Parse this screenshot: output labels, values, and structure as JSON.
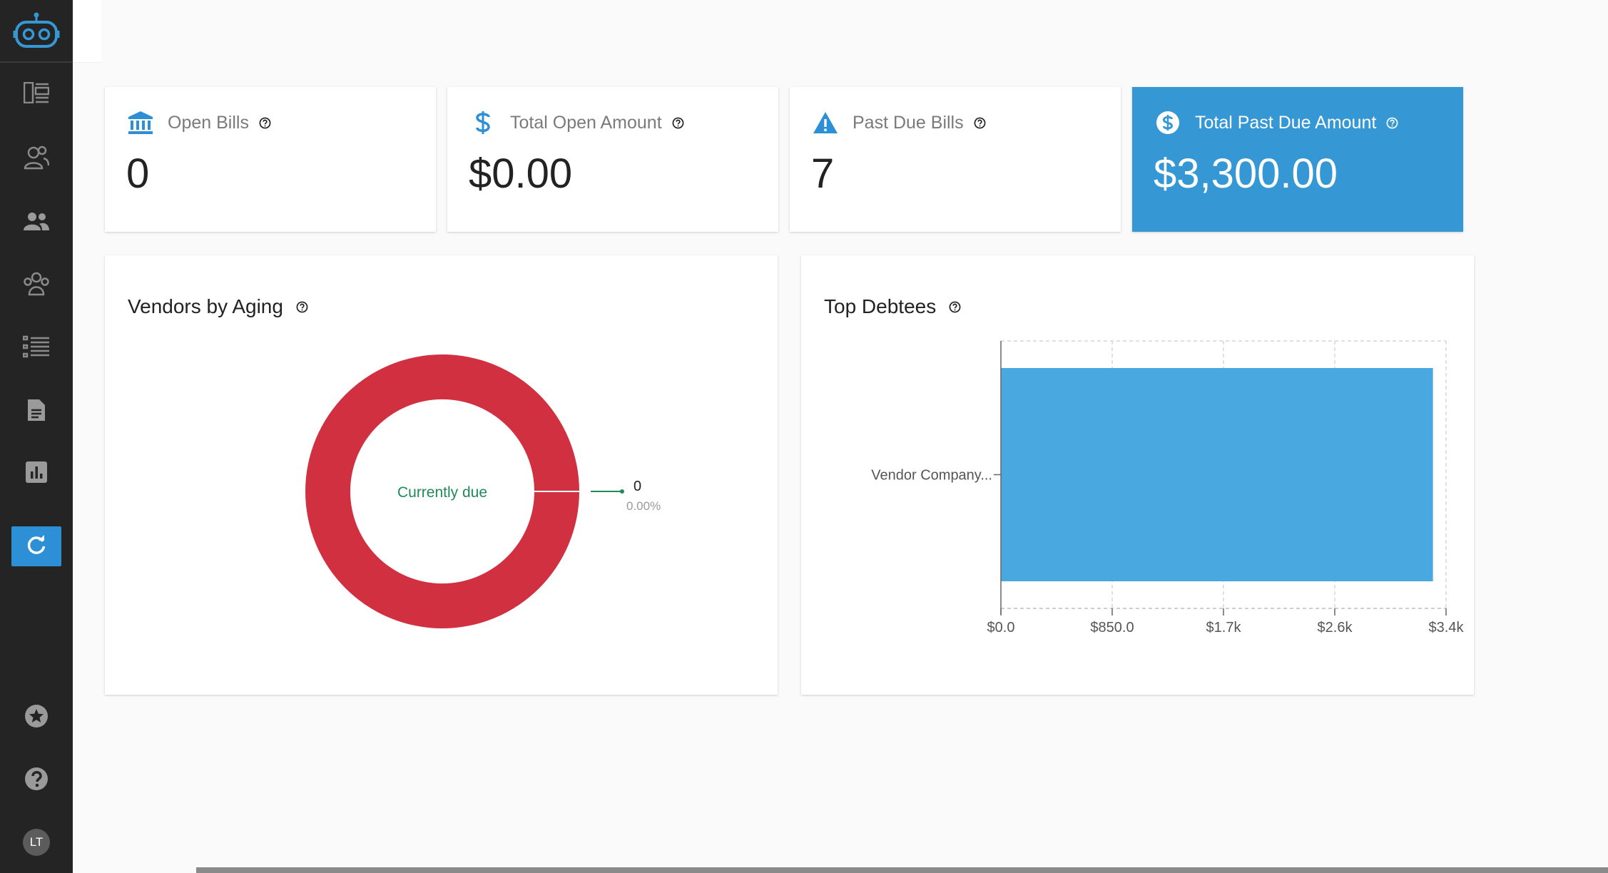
{
  "sidebar": {
    "icons": [
      "robot-logo-icon",
      "dashboard-icon",
      "contacts-icon",
      "people-icon",
      "groups-icon",
      "list-icon",
      "document-icon",
      "bar-chart-icon",
      "refresh-icon",
      "star-icon",
      "help-icon"
    ],
    "avatar_initials": "LT"
  },
  "stats": [
    {
      "label": "Open Bills",
      "value": "0",
      "icon": "bank-icon"
    },
    {
      "label": "Total Open Amount",
      "value": "$0.00",
      "icon": "dollar-icon"
    },
    {
      "label": "Past Due Bills",
      "value": "7",
      "icon": "warning-icon"
    },
    {
      "label": "Total Past Due Amount",
      "value": "$3,300.00",
      "icon": "dollar-circle-icon"
    }
  ],
  "panels": {
    "aging_title": "Vendors by Aging",
    "debtees_title": "Top Debtees"
  },
  "colors": {
    "accent": "#3597d3",
    "donut_red": "#d03040",
    "bar_blue": "#48a8df",
    "green_label": "#1f8a5a"
  },
  "chart_data": [
    {
      "type": "pie",
      "title": "Vendors by Aging",
      "slices": [
        {
          "label": "Currently due",
          "value": 0,
          "percent_label": "0.00%"
        },
        {
          "label": "",
          "value": 100
        }
      ],
      "center_label": "Currently due",
      "callout_value": "0",
      "callout_percent": "0.00%"
    },
    {
      "type": "bar",
      "orientation": "horizontal",
      "title": "Top Debtees",
      "categories": [
        "Vendor Company..."
      ],
      "values": [
        3300
      ],
      "xlim": [
        0,
        3400
      ],
      "x_ticks": [
        "$0.0",
        "$850.0",
        "$1.7k",
        "$2.6k",
        "$3.4k"
      ],
      "grid": true
    }
  ]
}
